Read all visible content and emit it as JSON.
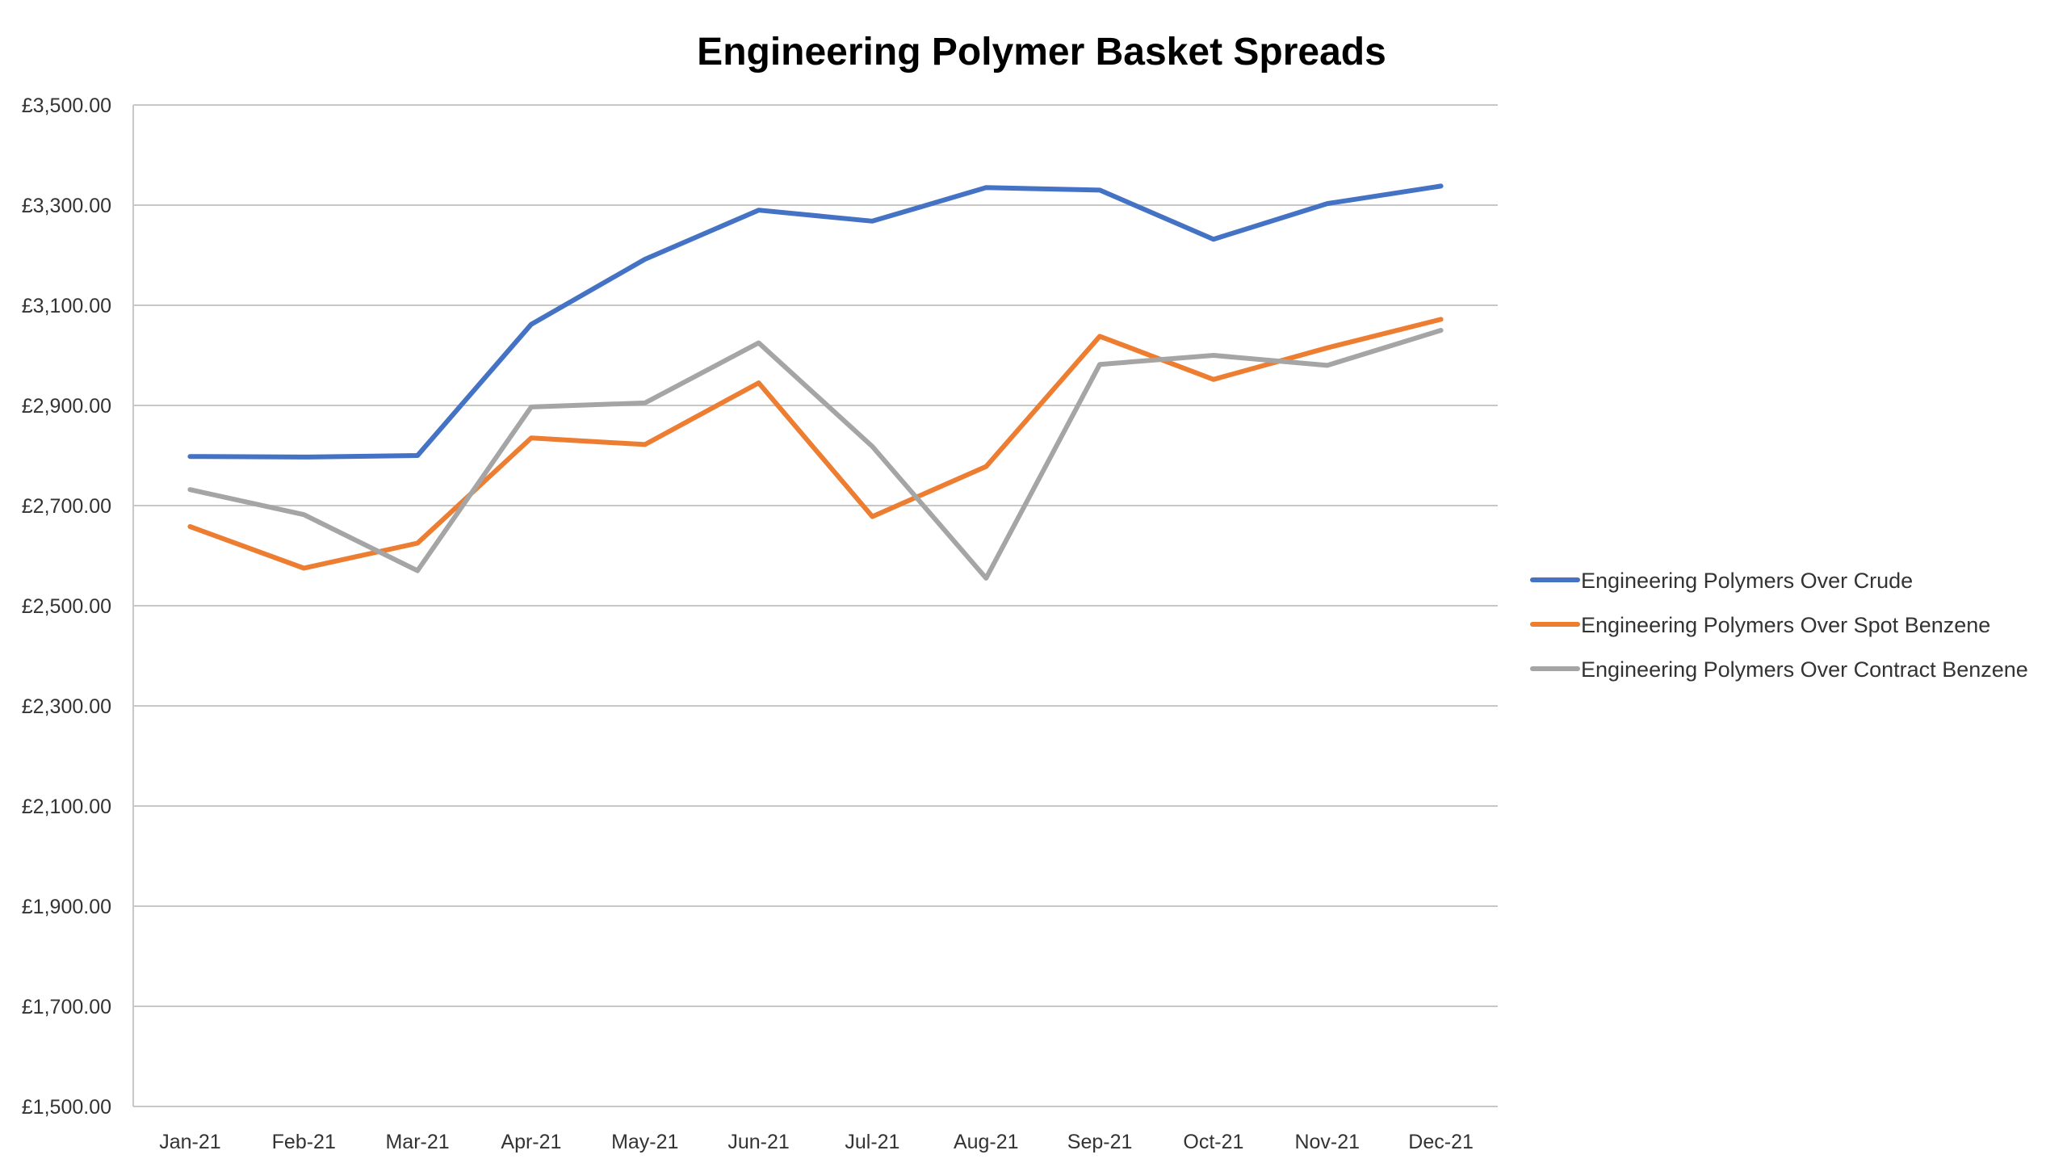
{
  "chart_data": {
    "type": "line",
    "title": "Engineering Polymer Basket Spreads",
    "xlabel": "",
    "ylabel": "",
    "categories": [
      "Jan-21",
      "Feb-21",
      "Mar-21",
      "Apr-21",
      "May-21",
      "Jun-21",
      "Jul-21",
      "Aug-21",
      "Sep-21",
      "Oct-21",
      "Nov-21",
      "Dec-21"
    ],
    "y_ticks": [
      "£1,500.00",
      "£1,700.00",
      "£1,900.00",
      "£2,100.00",
      "£2,300.00",
      "£2,500.00",
      "£2,700.00",
      "£2,900.00",
      "£3,100.00",
      "£3,300.00",
      "£3,500.00"
    ],
    "ylim": [
      1500,
      3500
    ],
    "grid": true,
    "legend_position": "right",
    "series": [
      {
        "name": "Engineering Polymers Over Crude",
        "color": "#4472C4",
        "values": [
          2798,
          2797,
          2800,
          3062,
          3192,
          3290,
          3268,
          3335,
          3330,
          3232,
          3303,
          3338
        ]
      },
      {
        "name": "Engineering Polymers Over Spot Benzene",
        "color": "#ED7D31",
        "values": [
          2658,
          2575,
          2625,
          2835,
          2822,
          2945,
          2678,
          2778,
          3038,
          2952,
          3015,
          3072
        ]
      },
      {
        "name": "Engineering Polymers Over Contract Benzene",
        "color": "#A5A5A5",
        "values": [
          2732,
          2682,
          2570,
          2897,
          2905,
          3025,
          2818,
          2555,
          2982,
          3000,
          2980,
          3050
        ]
      }
    ]
  }
}
